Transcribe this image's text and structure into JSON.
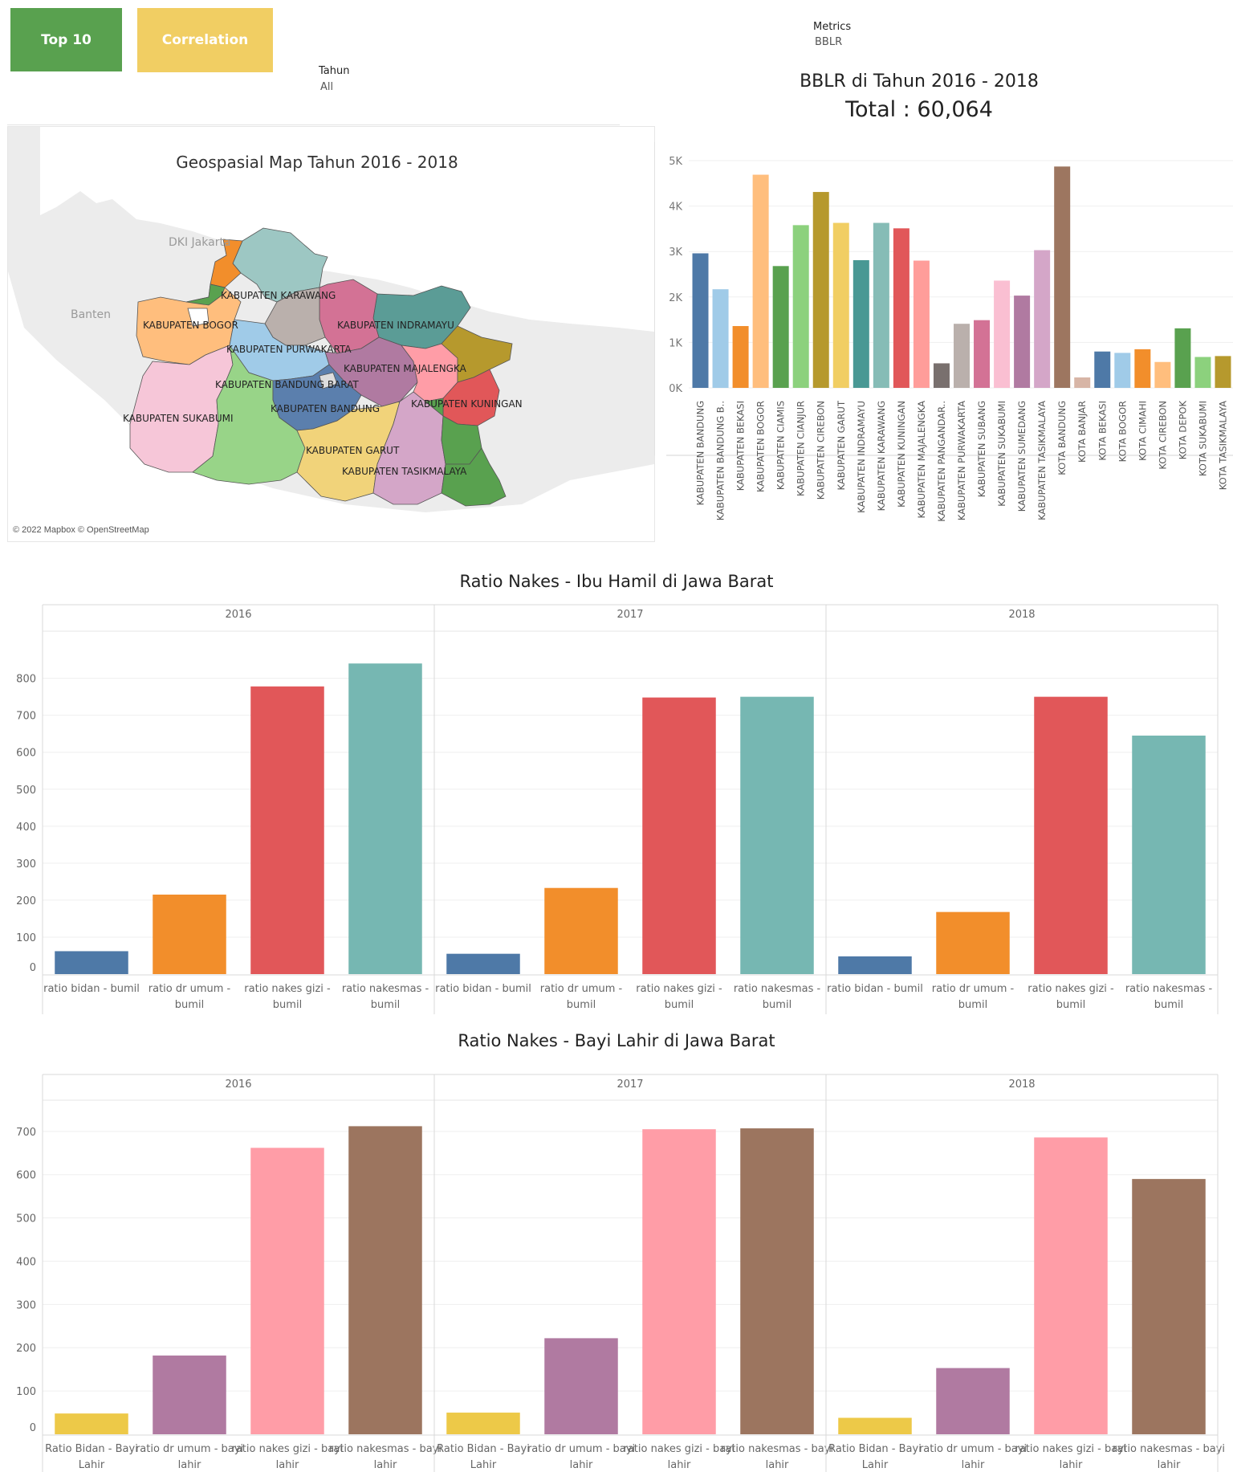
{
  "buttons": {
    "top10": {
      "label": "Top 10",
      "color": "#59a14f"
    },
    "correlation": {
      "label": "Correlation",
      "color": "#f1ce63"
    }
  },
  "filters": {
    "tahun": {
      "label": "Tahun",
      "value": "All"
    },
    "metrics": {
      "label": "Metrics",
      "value": "BBLR"
    }
  },
  "map": {
    "title": "Geospasial Map Tahun 2016 - 2018",
    "copyright": "© 2022 Mapbox © OpenStreetMap",
    "base_labels": {
      "jakarta": "DKI Jakarta",
      "banten": "Banten"
    },
    "regions": [
      {
        "name": "KABUPATEN KARAWANG",
        "color": "#9dc7c3"
      },
      {
        "name": "KABUPATEN BOGOR",
        "color": "#ffbe7d"
      },
      {
        "name": "KABUPATEN INDRAMAYU",
        "color": "#5b9c96"
      },
      {
        "name": "KABUPATEN PURWAKARTA",
        "color": "#bab0ac"
      },
      {
        "name": "KABUPATEN MAJALENGKA",
        "color": "#ff9da7"
      },
      {
        "name": "KABUPATEN BANDUNG BARAT",
        "color": "#a0cbe8"
      },
      {
        "name": "KABUPATEN SUKABUMI",
        "color": "#f6c6d8"
      },
      {
        "name": "KABUPATEN BANDUNG",
        "color": "#5b7fad"
      },
      {
        "name": "KABUPATEN KUNINGAN",
        "color": "#e15759"
      },
      {
        "name": "KABUPATEN GARUT",
        "color": "#f1d37a"
      },
      {
        "name": "KABUPATEN TASIKMALAYA",
        "color": "#d4a6c8"
      }
    ]
  },
  "bblr": {
    "title": "BBLR di  Tahun 2016 - 2018",
    "total": "Total : 60,064"
  },
  "chart_data": [
    {
      "type": "bar",
      "title": "",
      "categories": [
        "KABUPATEN BANDUNG",
        "KABUPATEN BANDUNG B..",
        "KABUPATEN BEKASI",
        "KABUPATEN BOGOR",
        "KABUPATEN CIAMIS",
        "KABUPATEN CIANJUR",
        "KABUPATEN CIREBON",
        "KABUPATEN GARUT",
        "KABUPATEN INDRAMAYU",
        "KABUPATEN KARAWANG",
        "KABUPATEN KUNINGAN",
        "KABUPATEN MAJALENGKA",
        "KABUPATEN PANGANDAR..",
        "KABUPATEN PURWAKARTA",
        "KABUPATEN SUBANG",
        "KABUPATEN SUKABUMI",
        "KABUPATEN SUMEDANG",
        "KABUPATEN TASIKMALAYA",
        "KOTA BANDUNG",
        "KOTA BANJAR",
        "KOTA BEKASI",
        "KOTA BOGOR",
        "KOTA CIMAHI",
        "KOTA CIREBON",
        "KOTA DEPOK",
        "KOTA SUKABUMI",
        "KOTA TASIKMALAYA"
      ],
      "values": [
        2960,
        2170,
        1360,
        4690,
        2680,
        3580,
        4310,
        3630,
        2810,
        3630,
        3510,
        2800,
        540,
        1410,
        1490,
        2360,
        2030,
        3030,
        4870,
        230,
        800,
        770,
        850,
        570,
        1310,
        680,
        700
      ],
      "colors": [
        "#4e79a7",
        "#a0cbe8",
        "#f28e2b",
        "#ffbe7d",
        "#59a14f",
        "#8cd17d",
        "#b6992d",
        "#f1ce63",
        "#499894",
        "#86bcb6",
        "#e15759",
        "#ff9d9a",
        "#79706e",
        "#bab0ac",
        "#d37295",
        "#fabfd2",
        "#b07aa1",
        "#d4a6c8",
        "#9d7660",
        "#d7b5a6",
        "#4e79a7",
        "#a0cbe8",
        "#f28e2b",
        "#ffbe7d",
        "#59a14f",
        "#8cd17d",
        "#b6992d"
      ],
      "yticks": [
        "0K",
        "1K",
        "2K",
        "3K",
        "4K",
        "5K"
      ],
      "ylim": [
        0,
        5000
      ],
      "grid": true
    },
    {
      "type": "bar",
      "title": "Ratio Nakes - Ibu Hamil di Jawa Barat",
      "panels": [
        "2016",
        "2017",
        "2018"
      ],
      "categories": [
        "ratio bidan - bumil",
        "ratio dr umum - bumil",
        "ratio nakes gizi - bumil",
        "ratio nakesmas - bumil"
      ],
      "series": [
        {
          "values": [
            62,
            215,
            778,
            840
          ]
        },
        {
          "values": [
            55,
            233,
            748,
            750
          ]
        },
        {
          "values": [
            48,
            168,
            750,
            645
          ]
        }
      ],
      "colors": [
        "#4e79a7",
        "#f28e2b",
        "#e15759",
        "#76b7b2"
      ],
      "yticks": [
        "0",
        "100",
        "200",
        "300",
        "400",
        "500",
        "600",
        "700",
        "800"
      ],
      "ylim": [
        0,
        860
      ],
      "grid": true
    },
    {
      "type": "bar",
      "title": "Ratio Nakes - Bayi Lahir di Jawa Barat",
      "panels": [
        "2016",
        "2017",
        "2018"
      ],
      "categories": [
        "Ratio Bidan - Bayi Lahir",
        "ratio dr umum - bayi lahir",
        "ratio nakes gizi - bayi lahir",
        "ratio nakesmas - bayi lahir"
      ],
      "series": [
        {
          "values": [
            48,
            182,
            662,
            712
          ]
        },
        {
          "values": [
            50,
            222,
            705,
            707
          ]
        },
        {
          "values": [
            38,
            153,
            686,
            590
          ]
        }
      ],
      "colors": [
        "#edc948",
        "#b07aa1",
        "#ff9da7",
        "#9c755f"
      ],
      "yticks": [
        "0",
        "100",
        "200",
        "300",
        "400",
        "500",
        "600",
        "700"
      ],
      "ylim": [
        0,
        735
      ],
      "grid": true
    }
  ]
}
